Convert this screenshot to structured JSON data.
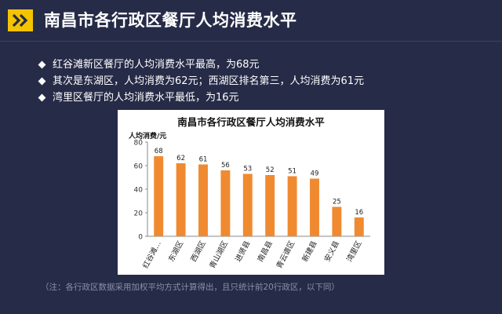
{
  "header": {
    "title": "南昌市各行政区餐厅人均消费水平",
    "icon": "double-chevron-icon",
    "icon_color": "#f5c400"
  },
  "bullets": [
    "红谷滩新区餐厅的人均消费水平最高，为68元",
    "其次是东湖区，人均消费为62元；西湖区排名第三，人均消费为61元",
    "湾里区餐厅的人均消费水平最低，为16元"
  ],
  "footnote": "（注：各行政区数据采用加权平均方式计算得出，且只统计前20行政区，以下同）",
  "chart_data": {
    "type": "bar",
    "title": "南昌市各行政区餐厅人均消费水平",
    "ylabel": "人均消费/元",
    "xlabel": "",
    "categories": [
      "红谷滩…",
      "东湖区",
      "西湖区",
      "青山湖区",
      "进贤县",
      "南昌县",
      "青云谱区",
      "新建县",
      "安义县",
      "湾里区"
    ],
    "values": [
      68,
      62,
      61,
      56,
      53,
      52,
      51,
      49,
      25,
      16
    ],
    "ylim": [
      0,
      80
    ],
    "yticks": [
      0,
      20,
      40,
      60,
      80
    ],
    "bar_color": "#f08a30",
    "data_labels": true,
    "grid": false,
    "legend": "none"
  }
}
